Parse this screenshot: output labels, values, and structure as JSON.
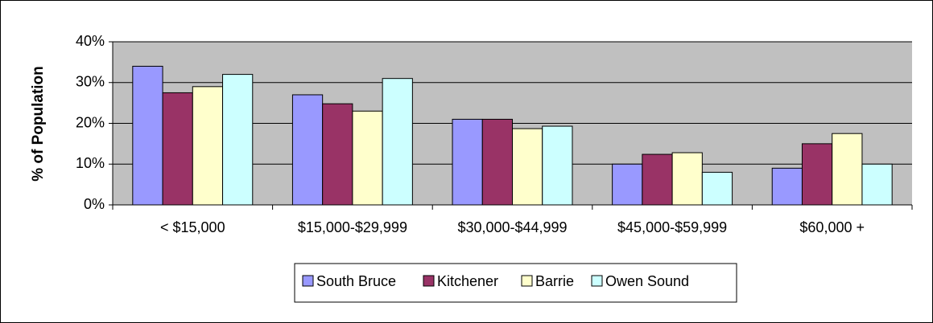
{
  "chart_data": {
    "type": "bar",
    "y_axis_label": "% of Population",
    "categories": [
      "< $15,000",
      "$15,000-$29,999",
      "$30,000-$44,999",
      "$45,000-$59,999",
      "$60,000 +"
    ],
    "series": [
      {
        "name": "South Bruce",
        "color": "#9999ff",
        "values": [
          34,
          27,
          21,
          10,
          9
        ]
      },
      {
        "name": "Kitchener",
        "color": "#993366",
        "values": [
          27.5,
          24.8,
          21,
          12.4,
          15
        ]
      },
      {
        "name": "Barrie",
        "color": "#ffffcc",
        "values": [
          29,
          23,
          18.7,
          12.8,
          17.5
        ]
      },
      {
        "name": "Owen Sound",
        "color": "#ccffff",
        "values": [
          32,
          31,
          19.3,
          8,
          10
        ]
      }
    ],
    "ylim": [
      0,
      40
    ],
    "yticks": [
      {
        "value": 0,
        "label": "0%"
      },
      {
        "value": 10,
        "label": "10%"
      },
      {
        "value": 20,
        "label": "20%"
      },
      {
        "value": 30,
        "label": "30%"
      },
      {
        "value": 40,
        "label": "40%"
      }
    ],
    "grid": true,
    "plot_background": "#c0c0c0",
    "legend_position": "bottom"
  }
}
